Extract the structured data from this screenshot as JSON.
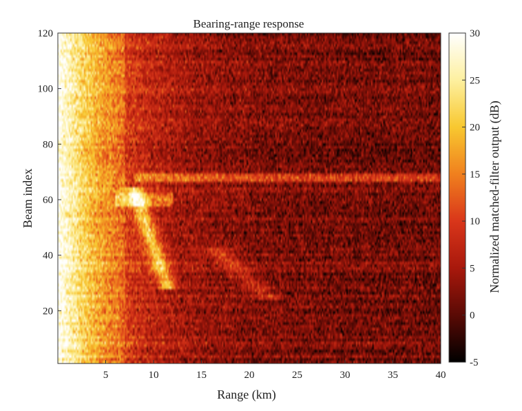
{
  "chart_data": {
    "type": "heatmap",
    "title": "Bearing-range response",
    "xlabel": "Range (km)",
    "ylabel": "Beam index",
    "colorbar_label": "Normalized matched-filter output (dB)",
    "x_range": [
      0,
      40
    ],
    "y_range": [
      1,
      120
    ],
    "x_ticks": [
      5,
      10,
      15,
      20,
      25,
      30,
      35,
      40
    ],
    "y_ticks": [
      20,
      40,
      60,
      80,
      100,
      120
    ],
    "color_range": [
      -5,
      30
    ],
    "colorbar_ticks": [
      -5,
      0,
      5,
      10,
      15,
      20,
      25,
      30
    ],
    "colormap": [
      "#000000",
      "#5a0a05",
      "#a8180c",
      "#d9361a",
      "#f0801e",
      "#f8c830",
      "#fdf0a0",
      "#ffffff"
    ],
    "grid": false,
    "features": {
      "near_range_high_level": {
        "range_km": [
          0,
          7
        ],
        "level_db": [
          18,
          30
        ]
      },
      "bright_arc": {
        "beam": [
          28,
          64
        ],
        "range_km": [
          7.5,
          12.5
        ],
        "level_db": [
          18,
          26
        ]
      },
      "horizontal_stripe": {
        "beam": 68,
        "range_km": [
          8,
          40
        ],
        "level_db": 14
      },
      "faint_arc": {
        "beam": [
          24,
          42
        ],
        "range_km": [
          15,
          24
        ],
        "level_db": 10
      },
      "background_far_range": {
        "range_km": [
          15,
          40
        ],
        "level_db": [
          -2,
          6
        ]
      }
    }
  }
}
